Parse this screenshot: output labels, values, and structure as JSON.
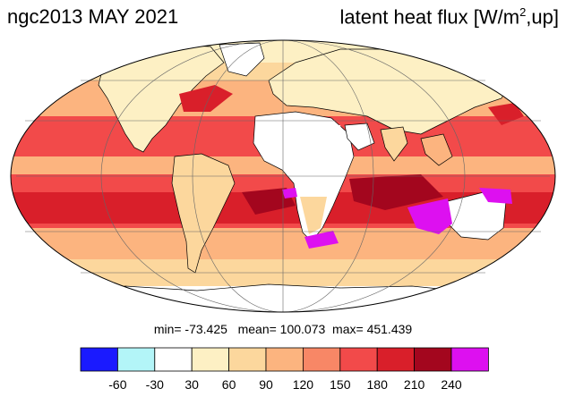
{
  "title": {
    "left": "ngc2013 MAY 2021",
    "right_main": "latent heat flux [W/m",
    "right_sup": "2",
    "right_tail": ",up]"
  },
  "stats": {
    "text": "min= -73.425   mean= 100.073  max= 451.439"
  },
  "colorbar": {
    "colors": [
      "#1a1aff",
      "#b3f5f8",
      "#ffffff",
      "#fdf0c4",
      "#fcd79d",
      "#fcb47f",
      "#f88766",
      "#f24a4a",
      "#d91f2a",
      "#a3061e",
      "#dd10f0"
    ],
    "tick_labels": [
      "-60",
      "-30",
      "30",
      "60",
      "90",
      "120",
      "150",
      "180",
      "210",
      "240"
    ]
  }
}
